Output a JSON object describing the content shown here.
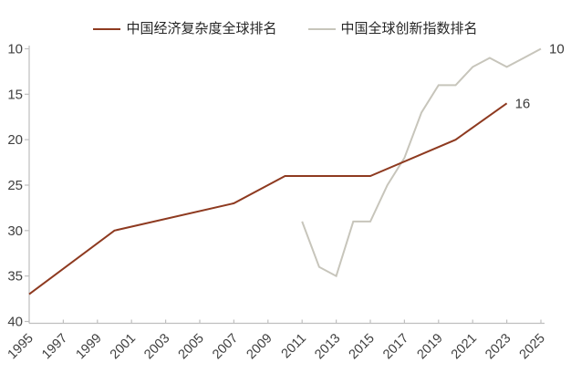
{
  "chart_data": {
    "type": "line",
    "title": "",
    "xlabel": "",
    "ylabel": "",
    "y_axis": {
      "ticks": [
        10,
        15,
        20,
        25,
        30,
        35,
        40
      ],
      "min": 10,
      "max": 40,
      "inverted": true,
      "note": "ranking axis, best (10) at top"
    },
    "x_axis": {
      "min": 1995,
      "max": 2025,
      "tick_years": [
        1995,
        1997,
        1999,
        2001,
        2003,
        2005,
        2007,
        2009,
        2011,
        2013,
        2015,
        2017,
        2019,
        2021,
        2023,
        2025
      ]
    },
    "grid": false,
    "legend_position": "top-center",
    "series": [
      {
        "name": "中国全球创新指数排名",
        "color": "#c7c5bb",
        "end_label": "10",
        "points": [
          [
            2011,
            29
          ],
          [
            2012,
            34
          ],
          [
            2013,
            35
          ],
          [
            2014,
            29
          ],
          [
            2015,
            29
          ],
          [
            2016,
            25
          ],
          [
            2017,
            22
          ],
          [
            2018,
            17
          ],
          [
            2019,
            14
          ],
          [
            2020,
            14
          ],
          [
            2021,
            12
          ],
          [
            2022,
            11
          ],
          [
            2023,
            12
          ],
          [
            2024,
            11
          ],
          [
            2025,
            10
          ]
        ]
      },
      {
        "name": "中国经济复杂度全球排名",
        "color": "#8e3a20",
        "end_label": "16",
        "points": [
          [
            1995,
            37
          ],
          [
            2000,
            30
          ],
          [
            2007,
            27
          ],
          [
            2010,
            24
          ],
          [
            2015,
            24
          ],
          [
            2020,
            20
          ],
          [
            2023,
            16
          ]
        ]
      }
    ],
    "colors": {
      "axis": "#bfbfbf",
      "tick_label": "#3f3f3f",
      "end_label": "#3a3a3a"
    }
  },
  "legend": {
    "items": [
      {
        "label": "中国经济复杂度全球排名"
      },
      {
        "label": "中国全球创新指数排名"
      }
    ]
  }
}
